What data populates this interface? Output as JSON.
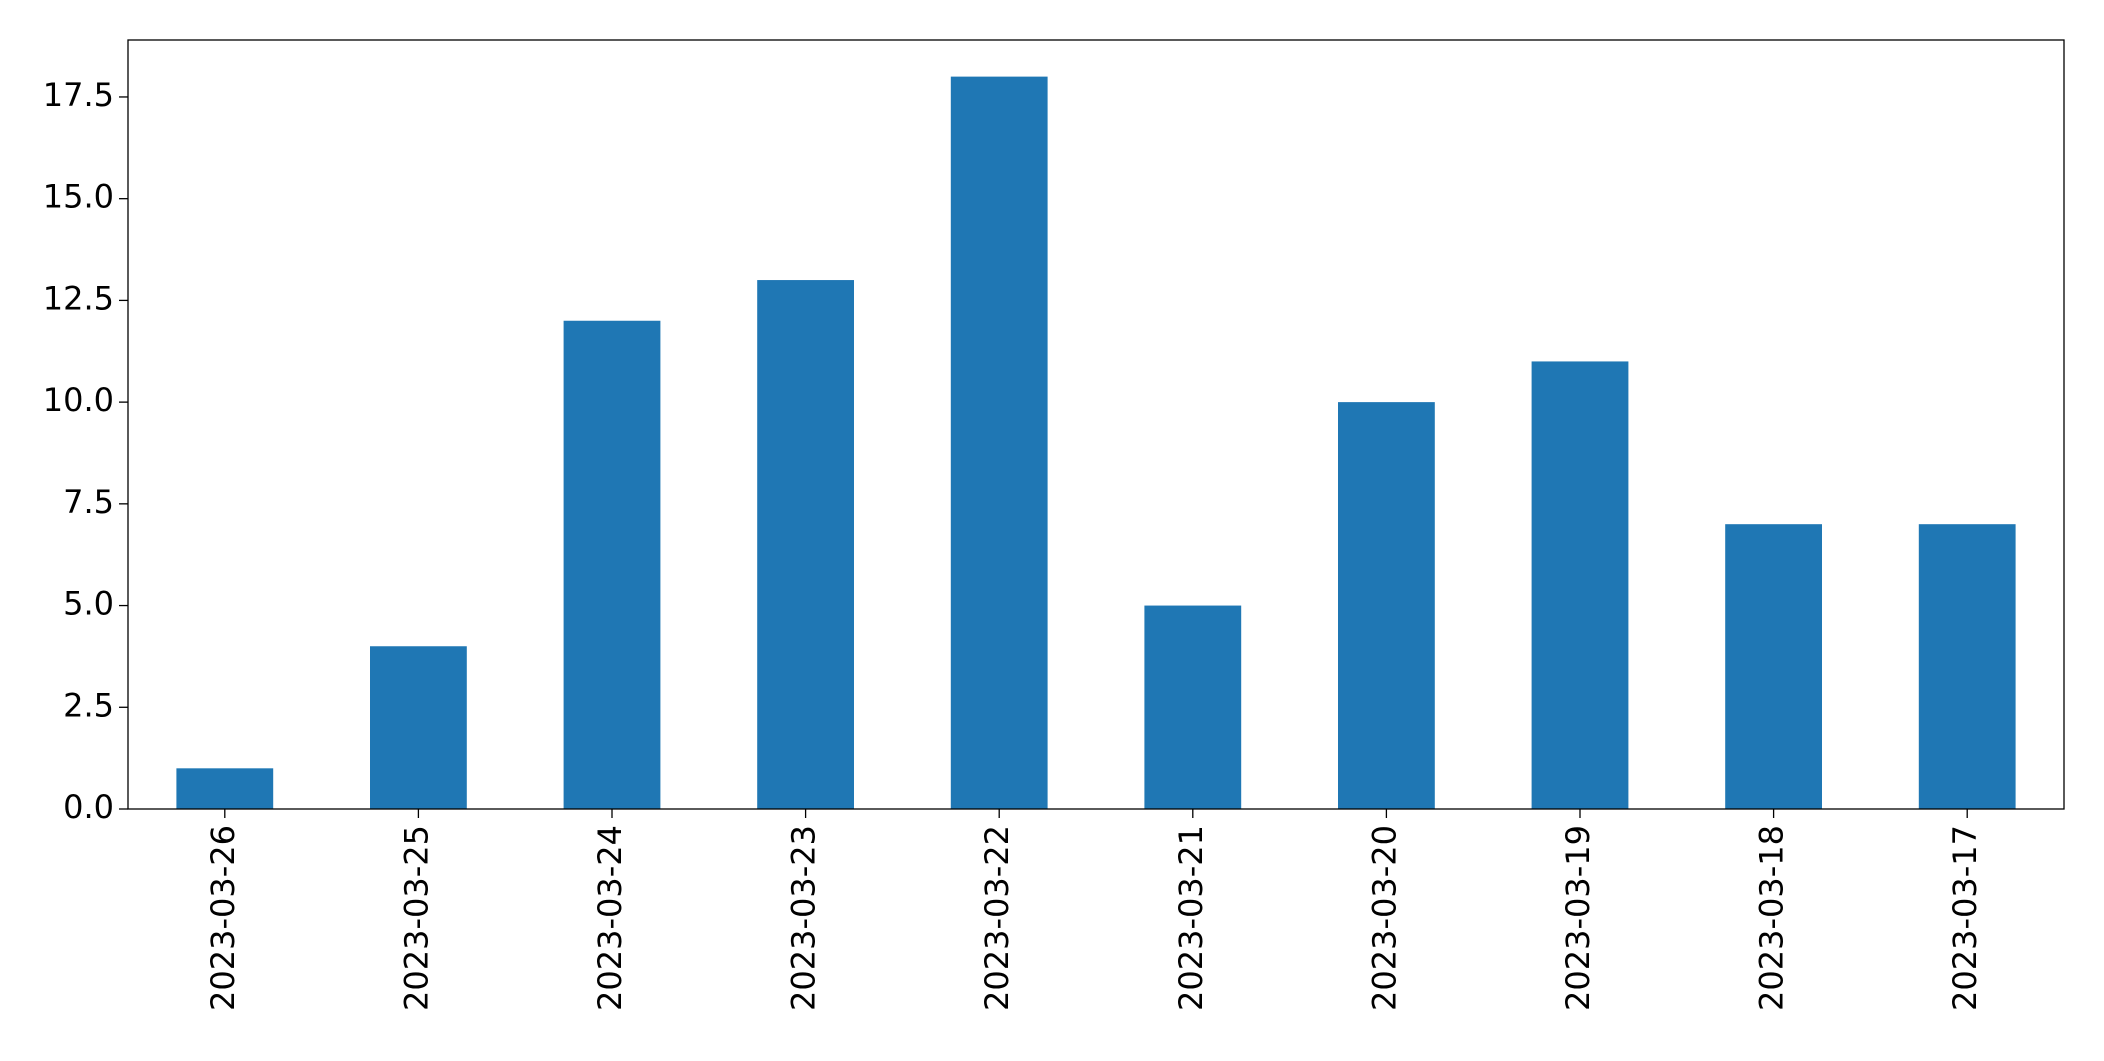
{
  "chart_data": {
    "type": "bar",
    "categories": [
      "2023-03-26",
      "2023-03-25",
      "2023-03-24",
      "2023-03-23",
      "2023-03-22",
      "2023-03-21",
      "2023-03-20",
      "2023-03-19",
      "2023-03-18",
      "2023-03-17"
    ],
    "values": [
      1,
      4,
      12,
      13,
      18,
      5,
      10,
      11,
      7,
      7
    ],
    "color": "#1f77b4",
    "ylim": [
      0,
      18.9
    ],
    "yticks": [
      {
        "value": 0,
        "label": "0.0"
      },
      2.5,
      {
        "value": 5,
        "label": "5.0"
      },
      7.5,
      {
        "value": 10,
        "label": "10.0"
      },
      12.5,
      {
        "value": 15,
        "label": "15.0"
      },
      17.5
    ],
    "grid": false
  }
}
